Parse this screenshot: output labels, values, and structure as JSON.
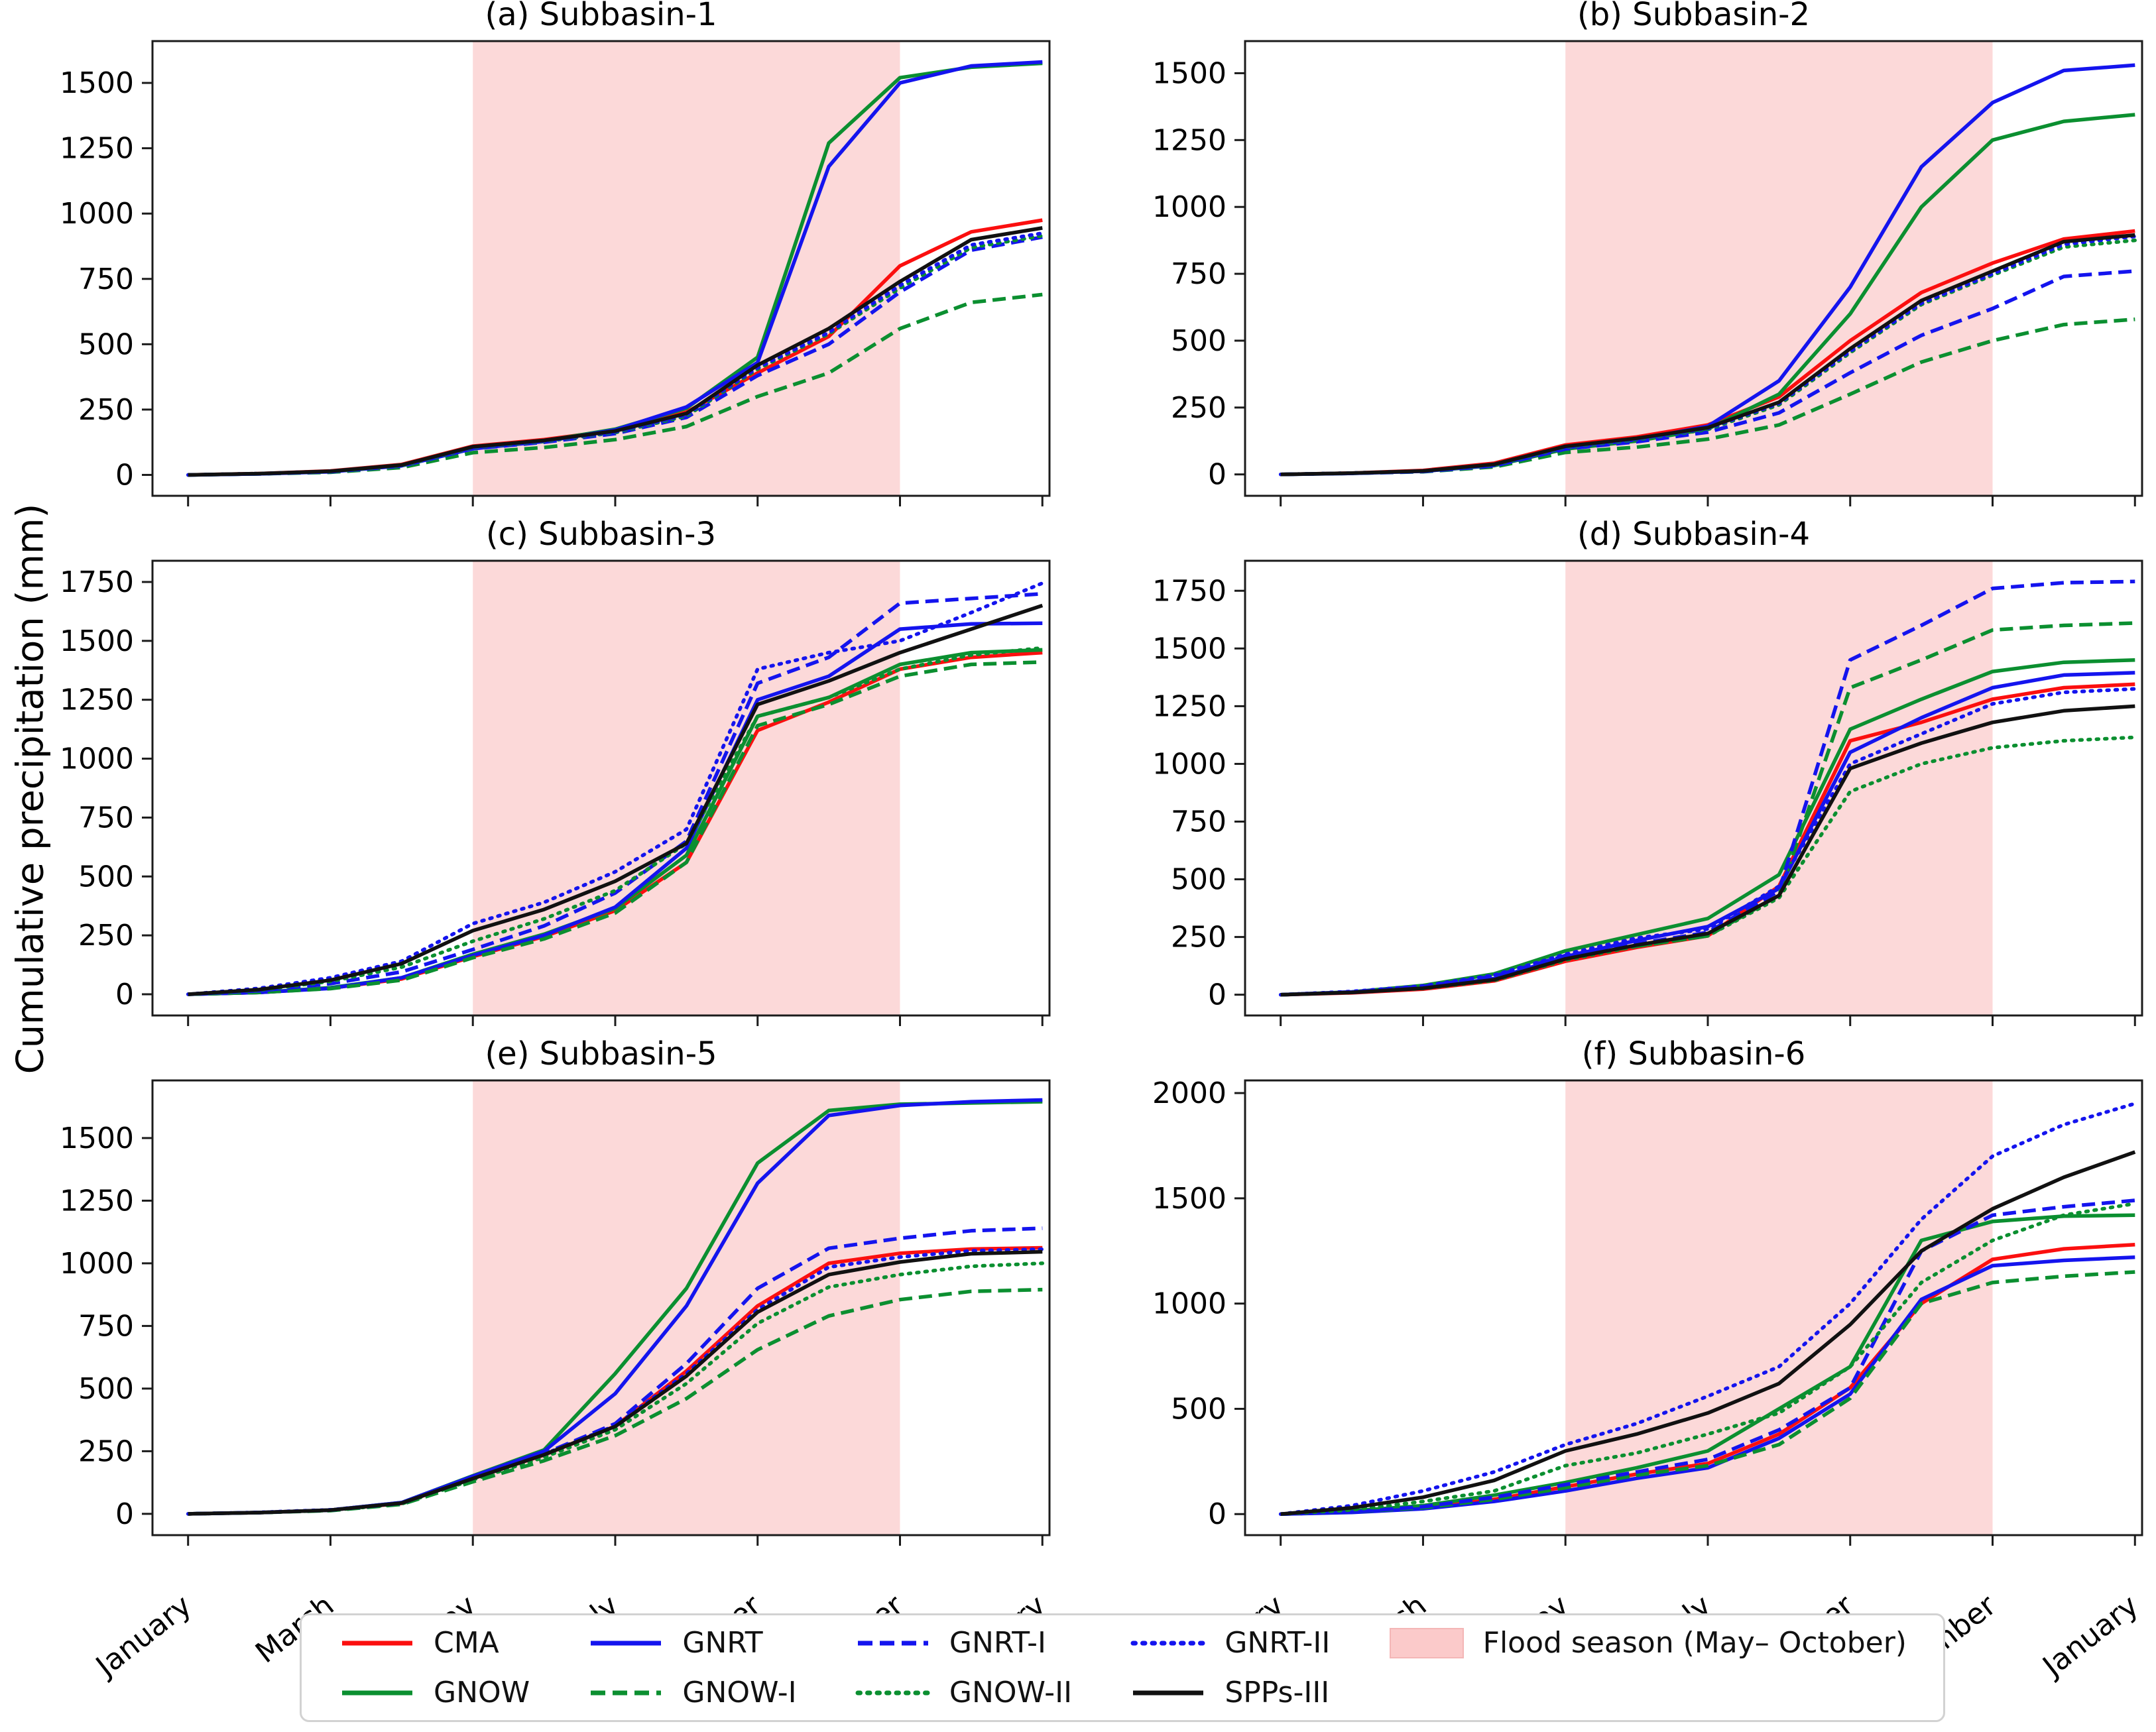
{
  "ylabel": "Cumulative precipitation (mm)",
  "xticks": {
    "months": [
      0,
      2,
      4,
      6,
      8,
      10,
      12
    ],
    "labels": [
      "January",
      "March",
      "May",
      "July",
      "September",
      "November",
      "January"
    ]
  },
  "flood_band": {
    "start_month": 4,
    "end_month": 10,
    "color": "#fcd9d9",
    "legend_color": "#fbcaca",
    "legend_edge": "#f4b6b6"
  },
  "styles": {
    "CMA": {
      "color": "#fb0f0f",
      "dash": "solid"
    },
    "GNOW": {
      "color": "#0b8f30",
      "dash": "solid"
    },
    "GNRT": {
      "color": "#1414ee",
      "dash": "solid"
    },
    "GNOW-I": {
      "color": "#0b8f30",
      "dash": "dashed"
    },
    "GNRT-I": {
      "color": "#1414ee",
      "dash": "dashed"
    },
    "GNOW-II": {
      "color": "#0b8f30",
      "dash": "dotted"
    },
    "GNRT-II": {
      "color": "#1414ee",
      "dash": "dotted"
    },
    "SPPs-III": {
      "color": "#111111",
      "dash": "solid"
    }
  },
  "legend": {
    "items": [
      {
        "label": "CMA",
        "series": "CMA"
      },
      {
        "label": "GNOW",
        "series": "GNOW"
      },
      {
        "label": "GNRT",
        "series": "GNRT"
      },
      {
        "label": "GNOW-I",
        "series": "GNOW-I"
      },
      {
        "label": "GNRT-I",
        "series": "GNRT-I"
      },
      {
        "label": "GNOW-II",
        "series": "GNOW-II"
      },
      {
        "label": "GNRT-II",
        "series": "GNRT-II"
      },
      {
        "label": "SPPs-III",
        "series": "SPPs-III"
      },
      {
        "label": "Flood season (May– October)",
        "series": null
      }
    ]
  },
  "chart_data": [
    {
      "type": "line",
      "key": "a",
      "title": "(a) Subbasin-1",
      "xlabel": "",
      "ylabel": "Cumulative precipitation (mm)",
      "x": [
        0,
        1,
        2,
        3,
        4,
        5,
        6,
        7,
        8,
        9,
        10,
        11,
        12
      ],
      "xlim": [
        -0.5,
        12.1
      ],
      "ylim": [
        -80,
        1660
      ],
      "yticks": [
        0,
        250,
        500,
        750,
        1000,
        1250,
        1500
      ],
      "series": [
        {
          "name": "CMA",
          "values": [
            0,
            5,
            15,
            40,
            110,
            135,
            170,
            240,
            390,
            530,
            800,
            930,
            975
          ]
        },
        {
          "name": "GNOW",
          "values": [
            0,
            4,
            13,
            38,
            105,
            130,
            175,
            255,
            450,
            1270,
            1520,
            1560,
            1575
          ]
        },
        {
          "name": "GNRT",
          "values": [
            0,
            4,
            12,
            35,
            100,
            128,
            172,
            260,
            430,
            1180,
            1500,
            1565,
            1580
          ]
        },
        {
          "name": "GNOW-I",
          "values": [
            0,
            4,
            10,
            28,
            85,
            105,
            135,
            185,
            300,
            390,
            560,
            660,
            690
          ]
        },
        {
          "name": "GNRT-I",
          "values": [
            0,
            4,
            12,
            34,
            100,
            125,
            158,
            220,
            380,
            500,
            700,
            860,
            910
          ]
        },
        {
          "name": "GNOW-II",
          "values": [
            0,
            5,
            13,
            36,
            104,
            128,
            162,
            225,
            405,
            540,
            715,
            870,
            915
          ]
        },
        {
          "name": "GNRT-II",
          "values": [
            0,
            5,
            14,
            38,
            106,
            130,
            165,
            230,
            410,
            545,
            725,
            880,
            925
          ]
        },
        {
          "name": "SPPs-III",
          "values": [
            0,
            5,
            14,
            38,
            108,
            132,
            168,
            235,
            420,
            560,
            740,
            900,
            945
          ]
        }
      ]
    },
    {
      "type": "line",
      "key": "b",
      "title": "(b) Subbasin-2",
      "xlabel": "",
      "ylabel": "Cumulative precipitation (mm)",
      "x": [
        0,
        1,
        2,
        3,
        4,
        5,
        6,
        7,
        8,
        9,
        10,
        11,
        12
      ],
      "xlim": [
        -0.5,
        12.1
      ],
      "ylim": [
        -80,
        1620
      ],
      "yticks": [
        0,
        250,
        500,
        750,
        1000,
        1250,
        1500
      ],
      "series": [
        {
          "name": "CMA",
          "values": [
            0,
            5,
            15,
            42,
            110,
            140,
            185,
            290,
            500,
            680,
            790,
            880,
            910
          ]
        },
        {
          "name": "GNOW",
          "values": [
            0,
            4,
            12,
            33,
            95,
            125,
            170,
            300,
            600,
            1000,
            1250,
            1320,
            1345
          ]
        },
        {
          "name": "GNRT",
          "values": [
            0,
            4,
            12,
            35,
            100,
            130,
            180,
            350,
            700,
            1150,
            1390,
            1510,
            1530
          ]
        },
        {
          "name": "GNOW-I",
          "values": [
            0,
            4,
            10,
            28,
            82,
            102,
            132,
            185,
            300,
            420,
            500,
            560,
            580
          ]
        },
        {
          "name": "GNRT-I",
          "values": [
            0,
            4,
            11,
            32,
            95,
            122,
            158,
            230,
            380,
            520,
            620,
            740,
            760
          ]
        },
        {
          "name": "GNOW-II",
          "values": [
            0,
            5,
            13,
            36,
            102,
            130,
            168,
            260,
            455,
            635,
            745,
            850,
            875
          ]
        },
        {
          "name": "GNRT-II",
          "values": [
            0,
            5,
            13,
            38,
            104,
            133,
            172,
            265,
            460,
            640,
            750,
            860,
            890
          ]
        },
        {
          "name": "SPPs-III",
          "values": [
            0,
            5,
            13,
            38,
            105,
            135,
            175,
            270,
            470,
            650,
            760,
            870,
            895
          ]
        }
      ]
    },
    {
      "type": "line",
      "key": "c",
      "title": "(c) Subbasin-3",
      "xlabel": "",
      "ylabel": "Cumulative precipitation (mm)",
      "x": [
        0,
        1,
        2,
        3,
        4,
        5,
        6,
        7,
        8,
        9,
        10,
        11,
        12
      ],
      "xlim": [
        -0.5,
        12.1
      ],
      "ylim": [
        -90,
        1840
      ],
      "yticks": [
        0,
        250,
        500,
        750,
        1000,
        1250,
        1500,
        1750
      ],
      "series": [
        {
          "name": "CMA",
          "values": [
            0,
            8,
            26,
            65,
            160,
            245,
            355,
            560,
            1120,
            1240,
            1380,
            1430,
            1450
          ]
        },
        {
          "name": "GNOW",
          "values": [
            0,
            8,
            28,
            70,
            170,
            255,
            365,
            590,
            1180,
            1260,
            1400,
            1450,
            1462
          ]
        },
        {
          "name": "GNRT",
          "values": [
            0,
            8,
            25,
            70,
            165,
            250,
            370,
            620,
            1250,
            1350,
            1550,
            1572,
            1575
          ]
        },
        {
          "name": "GNOW-I",
          "values": [
            0,
            8,
            24,
            60,
            155,
            235,
            345,
            560,
            1140,
            1230,
            1350,
            1400,
            1410
          ]
        },
        {
          "name": "GNRT-I",
          "values": [
            0,
            15,
            45,
            95,
            190,
            290,
            430,
            650,
            1320,
            1430,
            1660,
            1680,
            1700
          ]
        },
        {
          "name": "GNOW-II",
          "values": [
            0,
            18,
            55,
            115,
            225,
            320,
            440,
            640,
            1180,
            1260,
            1380,
            1440,
            1470
          ]
        },
        {
          "name": "GNRT-II",
          "values": [
            0,
            25,
            70,
            140,
            300,
            390,
            520,
            700,
            1380,
            1450,
            1500,
            1620,
            1745
          ]
        },
        {
          "name": "SPPs-III",
          "values": [
            0,
            20,
            60,
            130,
            270,
            360,
            480,
            640,
            1230,
            1330,
            1450,
            1550,
            1650
          ]
        }
      ]
    },
    {
      "type": "line",
      "key": "d",
      "title": "(d) Subbasin-4",
      "xlabel": "",
      "ylabel": "Cumulative precipitation (mm)",
      "x": [
        0,
        1,
        2,
        3,
        4,
        5,
        6,
        7,
        8,
        9,
        10,
        11,
        12
      ],
      "xlim": [
        -0.5,
        12.1
      ],
      "ylim": [
        -90,
        1880
      ],
      "yticks": [
        0,
        250,
        500,
        750,
        1000,
        1250,
        1500,
        1750
      ],
      "series": [
        {
          "name": "CMA",
          "values": [
            0,
            8,
            24,
            60,
            145,
            205,
            255,
            470,
            1100,
            1180,
            1280,
            1330,
            1345
          ]
        },
        {
          "name": "GNOW",
          "values": [
            0,
            12,
            40,
            90,
            190,
            260,
            330,
            520,
            1150,
            1280,
            1400,
            1440,
            1450
          ]
        },
        {
          "name": "GNRT",
          "values": [
            0,
            10,
            28,
            70,
            165,
            235,
            295,
            460,
            1050,
            1200,
            1330,
            1385,
            1395
          ]
        },
        {
          "name": "GNOW-I",
          "values": [
            0,
            10,
            30,
            70,
            160,
            210,
            255,
            430,
            1330,
            1450,
            1580,
            1600,
            1610
          ]
        },
        {
          "name": "GNRT-I",
          "values": [
            0,
            12,
            35,
            80,
            170,
            220,
            270,
            450,
            1450,
            1600,
            1760,
            1785,
            1790
          ]
        },
        {
          "name": "GNOW-II",
          "values": [
            0,
            10,
            27,
            62,
            150,
            210,
            255,
            420,
            880,
            1000,
            1070,
            1100,
            1115
          ]
        },
        {
          "name": "GNRT-II",
          "values": [
            0,
            14,
            38,
            85,
            175,
            245,
            285,
            470,
            1000,
            1130,
            1260,
            1310,
            1325
          ]
        },
        {
          "name": "SPPs-III",
          "values": [
            0,
            10,
            28,
            65,
            155,
            215,
            265,
            430,
            980,
            1090,
            1180,
            1230,
            1250
          ]
        }
      ]
    },
    {
      "type": "line",
      "key": "e",
      "title": "(e) Subbasin-5",
      "xlabel": "",
      "ylabel": "Cumulative precipitation (mm)",
      "x": [
        0,
        1,
        2,
        3,
        4,
        5,
        6,
        7,
        8,
        9,
        10,
        11,
        12
      ],
      "xlim": [
        -0.5,
        12.1
      ],
      "ylim": [
        -85,
        1730
      ],
      "yticks": [
        0,
        250,
        500,
        750,
        1000,
        1250,
        1500
      ],
      "series": [
        {
          "name": "CMA",
          "values": [
            0,
            5,
            15,
            42,
            142,
            235,
            350,
            570,
            830,
            1000,
            1040,
            1057,
            1062
          ]
        },
        {
          "name": "GNOW",
          "values": [
            0,
            5,
            15,
            45,
            152,
            255,
            560,
            900,
            1400,
            1610,
            1635,
            1640,
            1645
          ]
        },
        {
          "name": "GNRT",
          "values": [
            0,
            5,
            15,
            45,
            150,
            250,
            480,
            830,
            1320,
            1590,
            1630,
            1645,
            1652
          ]
        },
        {
          "name": "GNOW-I",
          "values": [
            0,
            5,
            13,
            38,
            128,
            212,
            312,
            460,
            655,
            790,
            855,
            888,
            895
          ]
        },
        {
          "name": "GNRT-I",
          "values": [
            0,
            5,
            15,
            42,
            145,
            240,
            360,
            600,
            900,
            1060,
            1100,
            1130,
            1140
          ]
        },
        {
          "name": "GNOW-II",
          "values": [
            0,
            5,
            14,
            40,
            136,
            226,
            336,
            520,
            760,
            905,
            955,
            988,
            1000
          ]
        },
        {
          "name": "GNRT-II",
          "values": [
            0,
            6,
            16,
            44,
            144,
            238,
            352,
            560,
            815,
            985,
            1025,
            1050,
            1056
          ]
        },
        {
          "name": "SPPs-III",
          "values": [
            0,
            5,
            15,
            43,
            141,
            236,
            349,
            550,
            805,
            955,
            1005,
            1038,
            1046
          ]
        }
      ]
    },
    {
      "type": "line",
      "key": "f",
      "title": "(f) Subbasin-6",
      "xlabel": "",
      "ylabel": "Cumulative precipitation (mm)",
      "x": [
        0,
        1,
        2,
        3,
        4,
        5,
        6,
        7,
        8,
        9,
        10,
        11,
        12
      ],
      "xlim": [
        -0.5,
        12.1
      ],
      "ylim": [
        -100,
        2060
      ],
      "yticks": [
        0,
        500,
        1000,
        1500,
        2000
      ],
      "series": [
        {
          "name": "CMA",
          "values": [
            0,
            10,
            30,
            70,
            130,
            190,
            240,
            380,
            600,
            1000,
            1210,
            1260,
            1280
          ]
        },
        {
          "name": "GNOW",
          "values": [
            0,
            15,
            40,
            90,
            150,
            220,
            300,
            500,
            700,
            1300,
            1390,
            1415,
            1420
          ]
        },
        {
          "name": "GNRT",
          "values": [
            0,
            8,
            25,
            60,
            110,
            170,
            220,
            360,
            570,
            1020,
            1180,
            1205,
            1220
          ]
        },
        {
          "name": "GNOW-I",
          "values": [
            0,
            10,
            30,
            70,
            125,
            185,
            230,
            330,
            550,
            1000,
            1100,
            1130,
            1150
          ]
        },
        {
          "name": "GNRT-I",
          "values": [
            0,
            10,
            35,
            80,
            140,
            200,
            260,
            400,
            600,
            1250,
            1420,
            1460,
            1490
          ]
        },
        {
          "name": "GNOW-II",
          "values": [
            0,
            20,
            60,
            110,
            230,
            290,
            380,
            480,
            700,
            1100,
            1300,
            1420,
            1475
          ]
        },
        {
          "name": "GNRT-II",
          "values": [
            0,
            40,
            110,
            200,
            330,
            430,
            560,
            700,
            1000,
            1400,
            1700,
            1850,
            1950
          ]
        },
        {
          "name": "SPPs-III",
          "values": [
            0,
            30,
            80,
            160,
            300,
            380,
            480,
            620,
            900,
            1250,
            1450,
            1600,
            1720
          ]
        }
      ]
    }
  ]
}
